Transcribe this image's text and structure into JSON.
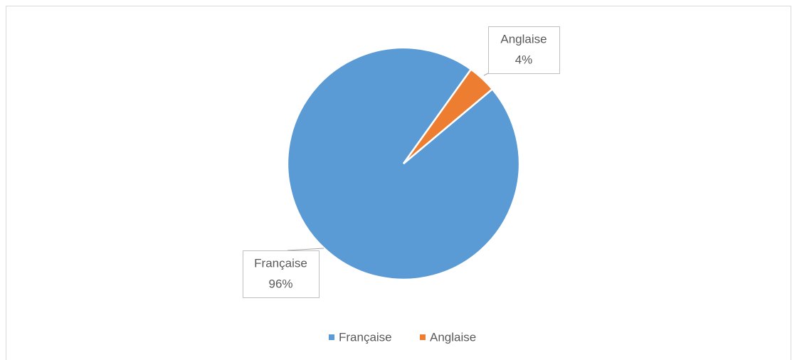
{
  "chart_data": {
    "type": "pie",
    "categories": [
      "Française",
      "Anglaise"
    ],
    "values": [
      96,
      4
    ],
    "value_labels": [
      "96%",
      "4%"
    ],
    "colors": [
      "#5b9bd5",
      "#ed7d31"
    ],
    "legend": "bottom"
  }
}
